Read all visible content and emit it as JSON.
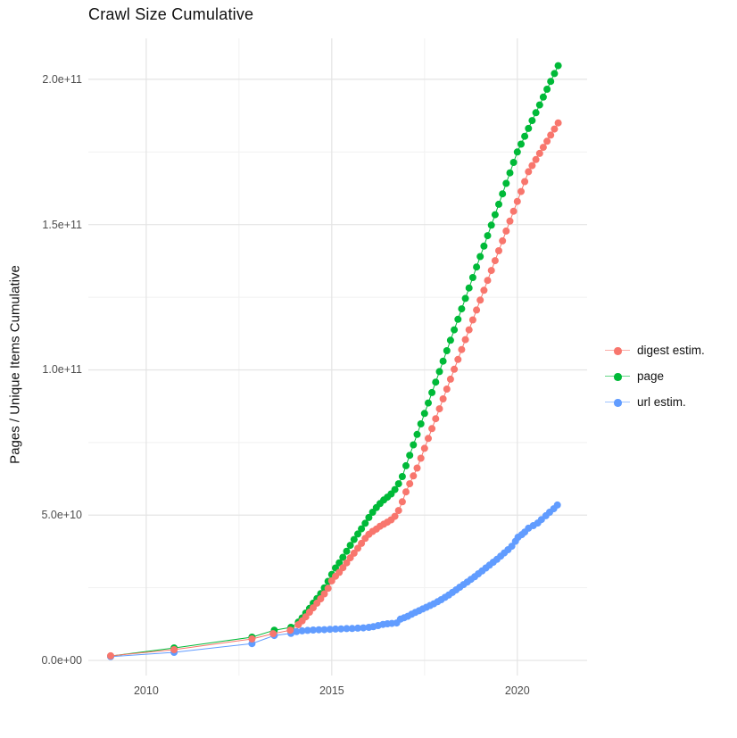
{
  "title": "Crawl Size Cumulative",
  "axes": {
    "y_label": "Pages / Unique Items Cumulative",
    "y_ticks": [
      {
        "label": "0.0e+00",
        "value": 0
      },
      {
        "label": "5.0e+10",
        "value": 50
      },
      {
        "label": "1.0e+11",
        "value": 100
      },
      {
        "label": "1.5e+11",
        "value": 150
      },
      {
        "label": "2.0e+11",
        "value": 200
      }
    ],
    "y_minor_values": [
      25,
      75,
      125,
      175
    ],
    "x_ticks": [
      {
        "label": "2010",
        "value": 2010
      },
      {
        "label": "2015",
        "value": 2015
      },
      {
        "label": "2020",
        "value": 2020
      }
    ],
    "x_minor_values": [
      2012.5,
      2017.5
    ]
  },
  "colors": {
    "digest": "#F8766D",
    "page": "#00BA38",
    "url": "#619CFF",
    "grid_major": "#e4e4e4",
    "grid_minor": "#f1f1f1",
    "tick_text": "#4d4d4d",
    "text": "#111111"
  },
  "legend": [
    {
      "id": "digest",
      "label": "digest estim.",
      "color": "#F8766D"
    },
    {
      "id": "page",
      "label": "page",
      "color": "#00BA38"
    },
    {
      "id": "url",
      "label": "url estim.",
      "color": "#619CFF"
    }
  ],
  "chart_data": {
    "type": "line",
    "title": "Crawl Size Cumulative",
    "xlabel": "",
    "ylabel": "Pages / Unique Items Cumulative",
    "x_unit": "year",
    "y_unit": "items x 1e9",
    "xlim": [
      2008.44,
      2021.88
    ],
    "ylim": [
      -5.2,
      214.1
    ],
    "grid": true,
    "legend_position": "right",
    "marker_radius": 4,
    "draw_order": [
      "page",
      "url",
      "digest"
    ],
    "series": [
      {
        "name": "page",
        "id": "page",
        "color": "#00BA38",
        "points": [
          [
            2009.04,
            1.5
          ],
          [
            2010.75,
            4.3
          ],
          [
            2012.85,
            8.0
          ],
          [
            2013.45,
            10.4
          ],
          [
            2013.9,
            11.4
          ],
          [
            2014.1,
            13.2
          ],
          [
            2014.2,
            14.6
          ],
          [
            2014.3,
            16.3
          ],
          [
            2014.4,
            17.9
          ],
          [
            2014.5,
            19.7
          ],
          [
            2014.6,
            21.3
          ],
          [
            2014.7,
            23.0
          ],
          [
            2014.8,
            25.0
          ],
          [
            2014.9,
            27.2
          ],
          [
            2015.0,
            29.6
          ],
          [
            2015.1,
            31.8
          ],
          [
            2015.2,
            33.6
          ],
          [
            2015.3,
            35.5
          ],
          [
            2015.4,
            37.6
          ],
          [
            2015.5,
            39.6
          ],
          [
            2015.6,
            41.6
          ],
          [
            2015.7,
            43.5
          ],
          [
            2015.8,
            45.3
          ],
          [
            2015.9,
            47.2
          ],
          [
            2016.0,
            49.2
          ],
          [
            2016.1,
            51.0
          ],
          [
            2016.2,
            52.6
          ],
          [
            2016.3,
            54.0
          ],
          [
            2016.4,
            55.2
          ],
          [
            2016.5,
            56.2
          ],
          [
            2016.6,
            57.3
          ],
          [
            2016.7,
            58.8
          ],
          [
            2016.8,
            60.8
          ],
          [
            2016.9,
            63.3
          ],
          [
            2017.0,
            67.0
          ],
          [
            2017.1,
            70.6
          ],
          [
            2017.2,
            74.2
          ],
          [
            2017.3,
            77.8
          ],
          [
            2017.4,
            81.4
          ],
          [
            2017.5,
            85.0
          ],
          [
            2017.6,
            88.6
          ],
          [
            2017.7,
            92.2
          ],
          [
            2017.8,
            95.8
          ],
          [
            2017.9,
            99.4
          ],
          [
            2018.0,
            103.0
          ],
          [
            2018.1,
            106.6
          ],
          [
            2018.2,
            110.2
          ],
          [
            2018.3,
            113.8
          ],
          [
            2018.4,
            117.4
          ],
          [
            2018.5,
            121.0
          ],
          [
            2018.6,
            124.6
          ],
          [
            2018.7,
            128.2
          ],
          [
            2018.8,
            131.8
          ],
          [
            2018.9,
            135.4
          ],
          [
            2019.0,
            139.0
          ],
          [
            2019.1,
            142.6
          ],
          [
            2019.2,
            146.2
          ],
          [
            2019.3,
            149.8
          ],
          [
            2019.4,
            153.4
          ],
          [
            2019.5,
            157.0
          ],
          [
            2019.6,
            160.6
          ],
          [
            2019.7,
            164.2
          ],
          [
            2019.8,
            167.8
          ],
          [
            2019.9,
            171.4
          ],
          [
            2020.0,
            175.0
          ],
          [
            2020.1,
            177.7
          ],
          [
            2020.2,
            180.4
          ],
          [
            2020.3,
            183.1
          ],
          [
            2020.4,
            185.8
          ],
          [
            2020.5,
            188.5
          ],
          [
            2020.6,
            191.2
          ],
          [
            2020.7,
            193.9
          ],
          [
            2020.8,
            196.6
          ],
          [
            2020.9,
            199.3
          ],
          [
            2021.0,
            202.0
          ],
          [
            2021.1,
            204.7
          ]
        ]
      },
      {
        "name": "url estim.",
        "id": "url",
        "color": "#619CFF",
        "points": [
          [
            2009.04,
            1.3
          ],
          [
            2010.75,
            2.8
          ],
          [
            2012.85,
            5.8
          ],
          [
            2013.45,
            8.6
          ],
          [
            2013.9,
            9.3
          ],
          [
            2014.05,
            9.9
          ],
          [
            2014.2,
            10.2
          ],
          [
            2014.35,
            10.35
          ],
          [
            2014.5,
            10.45
          ],
          [
            2014.65,
            10.55
          ],
          [
            2014.8,
            10.6
          ],
          [
            2014.95,
            10.7
          ],
          [
            2015.1,
            10.8
          ],
          [
            2015.25,
            10.85
          ],
          [
            2015.4,
            10.95
          ],
          [
            2015.55,
            11.0
          ],
          [
            2015.7,
            11.1
          ],
          [
            2015.85,
            11.2
          ],
          [
            2016.0,
            11.4
          ],
          [
            2016.12,
            11.6
          ],
          [
            2016.25,
            12.0
          ],
          [
            2016.38,
            12.4
          ],
          [
            2016.5,
            12.6
          ],
          [
            2016.62,
            12.75
          ],
          [
            2016.75,
            12.9
          ],
          [
            2016.85,
            14.2
          ],
          [
            2016.95,
            14.7
          ],
          [
            2017.05,
            15.2
          ],
          [
            2017.15,
            15.9
          ],
          [
            2017.25,
            16.5
          ],
          [
            2017.35,
            17.1
          ],
          [
            2017.45,
            17.7
          ],
          [
            2017.55,
            18.3
          ],
          [
            2017.65,
            18.9
          ],
          [
            2017.75,
            19.5
          ],
          [
            2017.85,
            20.2
          ],
          [
            2017.95,
            20.9
          ],
          [
            2018.05,
            21.7
          ],
          [
            2018.15,
            22.5
          ],
          [
            2018.25,
            23.4
          ],
          [
            2018.35,
            24.3
          ],
          [
            2018.45,
            25.2
          ],
          [
            2018.55,
            26.1
          ],
          [
            2018.65,
            27.0
          ],
          [
            2018.75,
            27.9
          ],
          [
            2018.85,
            28.8
          ],
          [
            2018.95,
            29.8
          ],
          [
            2019.05,
            30.8
          ],
          [
            2019.15,
            31.8
          ],
          [
            2019.25,
            32.8
          ],
          [
            2019.35,
            33.8
          ],
          [
            2019.45,
            34.8
          ],
          [
            2019.55,
            35.9
          ],
          [
            2019.65,
            37.0
          ],
          [
            2019.75,
            38.1
          ],
          [
            2019.85,
            39.3
          ],
          [
            2019.95,
            41.0
          ],
          [
            2020.02,
            42.4
          ],
          [
            2020.12,
            43.3
          ],
          [
            2020.2,
            44.2
          ],
          [
            2020.3,
            45.5
          ],
          [
            2020.43,
            46.4
          ],
          [
            2020.55,
            47.3
          ],
          [
            2020.65,
            48.5
          ],
          [
            2020.77,
            49.8
          ],
          [
            2020.87,
            51.0
          ],
          [
            2020.98,
            52.2
          ],
          [
            2021.08,
            53.5
          ]
        ]
      },
      {
        "name": "digest estim.",
        "id": "digest",
        "color": "#F8766D",
        "points": [
          [
            2009.04,
            1.6
          ],
          [
            2010.75,
            3.7
          ],
          [
            2012.85,
            7.4
          ],
          [
            2013.42,
            9.2
          ],
          [
            2013.88,
            10.4
          ],
          [
            2014.1,
            12.3
          ],
          [
            2014.2,
            13.6
          ],
          [
            2014.3,
            15.0
          ],
          [
            2014.4,
            16.6
          ],
          [
            2014.5,
            18.1
          ],
          [
            2014.6,
            19.7
          ],
          [
            2014.7,
            21.2
          ],
          [
            2014.8,
            22.9
          ],
          [
            2014.9,
            24.8
          ],
          [
            2015.0,
            27.4
          ],
          [
            2015.1,
            29.0
          ],
          [
            2015.2,
            30.3
          ],
          [
            2015.3,
            31.9
          ],
          [
            2015.4,
            33.6
          ],
          [
            2015.5,
            35.3
          ],
          [
            2015.6,
            36.9
          ],
          [
            2015.7,
            38.6
          ],
          [
            2015.8,
            40.3
          ],
          [
            2015.9,
            42.0
          ],
          [
            2016.0,
            43.4
          ],
          [
            2016.1,
            44.4
          ],
          [
            2016.2,
            45.2
          ],
          [
            2016.3,
            46.2
          ],
          [
            2016.4,
            46.9
          ],
          [
            2016.5,
            47.6
          ],
          [
            2016.6,
            48.4
          ],
          [
            2016.7,
            49.6
          ],
          [
            2016.8,
            51.6
          ],
          [
            2016.9,
            54.6
          ],
          [
            2017.0,
            58.0
          ],
          [
            2017.1,
            60.8
          ],
          [
            2017.2,
            63.5
          ],
          [
            2017.3,
            66.2
          ],
          [
            2017.4,
            69.6
          ],
          [
            2017.5,
            73.0
          ],
          [
            2017.6,
            76.4
          ],
          [
            2017.7,
            79.8
          ],
          [
            2017.8,
            83.2
          ],
          [
            2017.9,
            86.6
          ],
          [
            2018.0,
            90.0
          ],
          [
            2018.1,
            93.4
          ],
          [
            2018.2,
            96.8
          ],
          [
            2018.3,
            100.2
          ],
          [
            2018.4,
            103.6
          ],
          [
            2018.5,
            107.0
          ],
          [
            2018.6,
            110.4
          ],
          [
            2018.7,
            113.8
          ],
          [
            2018.8,
            117.2
          ],
          [
            2018.9,
            120.6
          ],
          [
            2019.0,
            124.0
          ],
          [
            2019.1,
            127.4
          ],
          [
            2019.2,
            130.8
          ],
          [
            2019.3,
            134.2
          ],
          [
            2019.4,
            137.6
          ],
          [
            2019.5,
            141.0
          ],
          [
            2019.6,
            144.4
          ],
          [
            2019.7,
            147.8
          ],
          [
            2019.8,
            151.2
          ],
          [
            2019.9,
            154.6
          ],
          [
            2020.0,
            158.0
          ],
          [
            2020.1,
            161.4
          ],
          [
            2020.2,
            164.8
          ],
          [
            2020.3,
            168.2
          ],
          [
            2020.4,
            170.3
          ],
          [
            2020.5,
            172.4
          ],
          [
            2020.6,
            174.5
          ],
          [
            2020.7,
            176.6
          ],
          [
            2020.8,
            178.7
          ],
          [
            2020.9,
            180.8
          ],
          [
            2021.0,
            182.9
          ],
          [
            2021.1,
            185.0
          ]
        ]
      }
    ]
  }
}
